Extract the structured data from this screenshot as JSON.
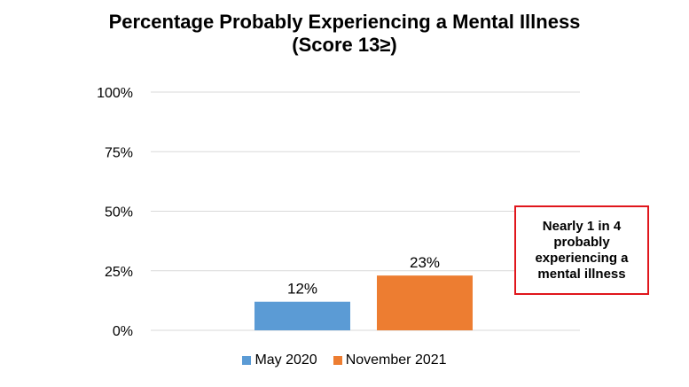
{
  "chart_data": {
    "type": "bar",
    "title": "Percentage Probably Experiencing a Mental Illness",
    "subtitle": "(Score 13≥)",
    "categories": [
      ""
    ],
    "series": [
      {
        "name": "May 2020",
        "values": [
          12
        ],
        "color": "#5b9bd5",
        "label": "12%"
      },
      {
        "name": "November 2021",
        "values": [
          23
        ],
        "color": "#ed7d31",
        "label": "23%"
      }
    ],
    "ylim": [
      0,
      100
    ],
    "yticks": [
      {
        "value": 0,
        "label": "0%"
      },
      {
        "value": 25,
        "label": "25%"
      },
      {
        "value": 50,
        "label": "50%"
      },
      {
        "value": 75,
        "label": "75%"
      },
      {
        "value": 100,
        "label": "100%"
      }
    ],
    "grid": true,
    "legend_position": "bottom"
  },
  "callout": {
    "text": "Nearly 1 in 4 probably experiencing a mental illness",
    "border_color": "#e0161c"
  }
}
